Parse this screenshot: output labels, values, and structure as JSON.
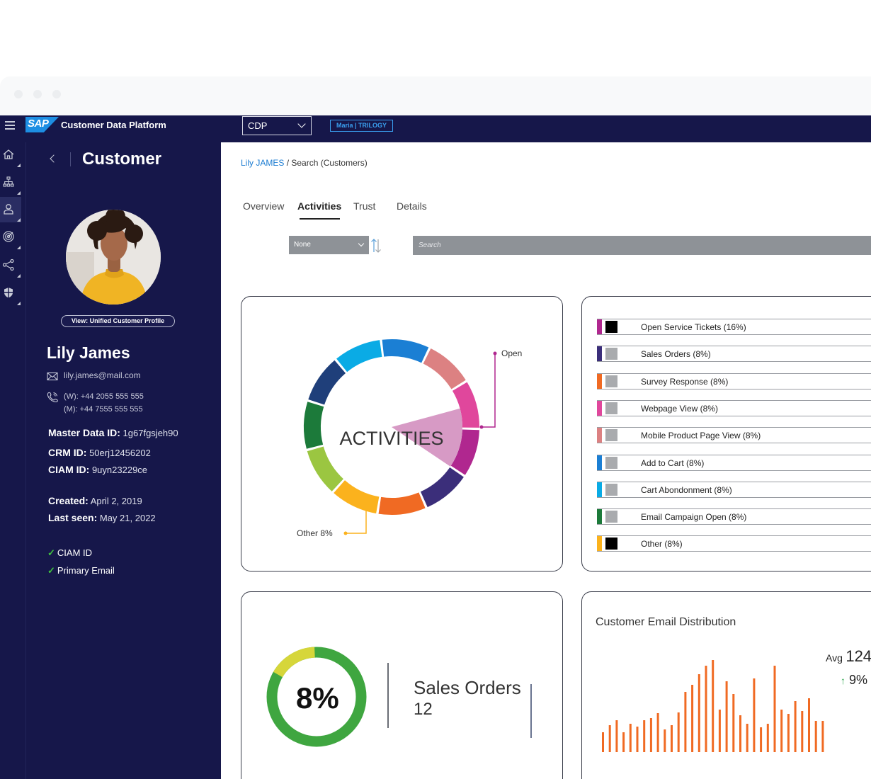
{
  "header": {
    "app_title": "Customer Data Platform",
    "logo_text": "SAP",
    "environment_select": "CDP",
    "tenant_badge": "Maria | TRILOGY"
  },
  "icon_rail": [
    "home-icon",
    "hierarchy-icon",
    "user-icon",
    "target-icon",
    "share-icon",
    "shield-icon"
  ],
  "side_panel": {
    "heading": "Customer",
    "view_profile_label": "View: Unified Customer Profile",
    "name": "Lily James",
    "email": "lily.james@mail.com",
    "phone_work": "(W): +44 2055 555 555",
    "phone_mobile": "(M): +44 7555 555 555",
    "master_id_label": "Master Data ID:",
    "master_id_value": "1g67fgsjeh90",
    "crm_id_label": "CRM ID:",
    "crm_id_value": "50erj12456202",
    "ciam_id_label": "CIAM ID:",
    "ciam_id_value": "9uyn23229ce",
    "created_label": "Created:",
    "created_value": "April 2, 2019",
    "last_seen_label": "Last seen:",
    "last_seen_value": "May 21, 2022",
    "checks": [
      "CIAM ID",
      "Primary Email"
    ]
  },
  "main": {
    "breadcrumb_link": "Lily JAMES",
    "breadcrumb_sep": " / ",
    "breadcrumb_current": "Search (Customers)",
    "tabs": [
      "Overview",
      "Activities",
      "Trust",
      "Details"
    ],
    "active_tab": "Activities",
    "sort_value": "None",
    "search_placeholder": "Search"
  },
  "activities_chart": {
    "center_label": "ACTIVITIES",
    "callout_open": "Open",
    "callout_other": "Other 8%",
    "segment_colors": [
      "#1b7fd4",
      "#dc8182",
      "#e0479c",
      "#b0278f",
      "#3b2e7a",
      "#f06a23",
      "#fbb21d",
      "#9bc641",
      "#1c7a3a",
      "#1f3f7a",
      "#0aabe5"
    ],
    "highlight_color": "#d79ac5"
  },
  "legend": [
    {
      "label": "Open Service Tickets (16%)",
      "bar": "#b0278f",
      "square": "#000000"
    },
    {
      "label": "Sales Orders (8%)",
      "bar": "#3b2e7a",
      "square": "#a9abae"
    },
    {
      "label": "Survey Response (8%)",
      "bar": "#f06a23",
      "square": "#a9abae"
    },
    {
      "label": "Webpage View (8%)",
      "bar": "#e0479c",
      "square": "#a9abae"
    },
    {
      "label": "Mobile Product Page View (8%)",
      "bar": "#dc8182",
      "square": "#a9abae"
    },
    {
      "label": "Add to Cart (8%)",
      "bar": "#1b7fd4",
      "square": "#a9abae"
    },
    {
      "label": "Cart Abondonment (8%)",
      "bar": "#0aabe5",
      "square": "#a9abae"
    },
    {
      "label": "Email Campaign Open (8%)",
      "bar": "#1c7a3a",
      "square": "#a9abae"
    },
    {
      "label": "Other (8%)",
      "bar": "#fbb21d",
      "square": "#000000"
    }
  ],
  "sales_orders": {
    "percent_label": "8%",
    "percent": 8,
    "title": "Sales Orders",
    "value": "12",
    "ring_color": "#3fa640",
    "accent_color": "#d6d63a"
  },
  "email_distribution": {
    "title": "Customer Email Distribution",
    "avg_label": "Avg",
    "avg_value": "124",
    "trend_value": "9%",
    "bar_color": "#f06a23",
    "values": [
      28,
      38,
      45,
      28,
      40,
      36,
      45,
      48,
      55,
      32,
      38,
      56,
      85,
      95,
      110,
      122,
      130,
      60,
      100,
      82,
      52,
      40,
      104,
      35,
      40,
      122,
      60,
      54,
      72,
      58,
      76,
      44,
      44
    ]
  }
}
